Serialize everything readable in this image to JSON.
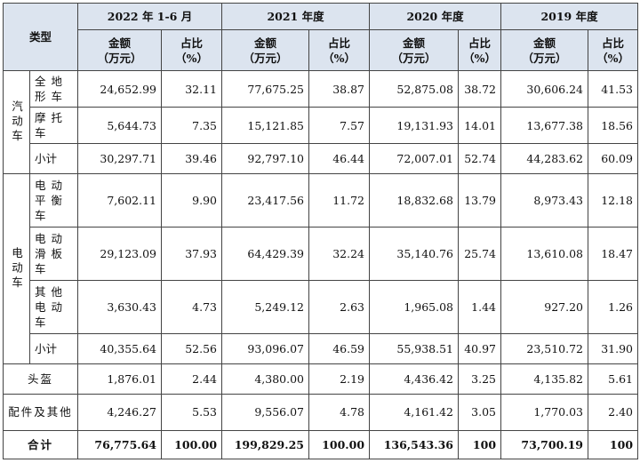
{
  "header": {
    "type_label": "类型",
    "periods": [
      "2022 年 1-6 月",
      "2021 年度",
      "2020 年度",
      "2019 年度"
    ],
    "amount_label": "金额\n（万元）",
    "ratio_label": "占比\n（%）"
  },
  "groups": {
    "motor": "汽动车",
    "electric": "电动车"
  },
  "rows": {
    "atv": {
      "label": "全地形车",
      "values": [
        "24,652.99",
        "32.11",
        "77,675.25",
        "38.87",
        "52,875.08",
        "38.72",
        "30,606.24",
        "41.53"
      ]
    },
    "moto": {
      "label": "摩托车",
      "values": [
        "5,644.73",
        "7.35",
        "15,121.85",
        "7.57",
        "19,131.93",
        "14.01",
        "13,677.38",
        "18.56"
      ]
    },
    "motor_sub": {
      "label": "小计",
      "values": [
        "30,297.71",
        "39.46",
        "92,797.10",
        "46.44",
        "72,007.01",
        "52.74",
        "44,283.62",
        "60.09"
      ]
    },
    "balance": {
      "label": "电动平衡车",
      "values": [
        "7,602.11",
        "9.90",
        "23,417.56",
        "11.72",
        "18,832.68",
        "13.79",
        "8,973.43",
        "12.18"
      ]
    },
    "scooter": {
      "label": "电动滑板车",
      "values": [
        "29,123.09",
        "37.93",
        "64,429.39",
        "32.24",
        "35,140.76",
        "25.74",
        "13,610.08",
        "18.47"
      ]
    },
    "other_e": {
      "label": "其他电动车",
      "values": [
        "3,630.43",
        "4.73",
        "5,249.12",
        "2.63",
        "1,965.08",
        "1.44",
        "927.20",
        "1.26"
      ]
    },
    "elec_sub": {
      "label": "小计",
      "values": [
        "40,355.64",
        "52.56",
        "93,096.07",
        "46.59",
        "55,938.51",
        "40.97",
        "23,510.72",
        "31.90"
      ]
    },
    "helmet": {
      "label": "头盔",
      "values": [
        "1,876.01",
        "2.44",
        "4,380.00",
        "2.19",
        "4,436.42",
        "3.25",
        "4,135.82",
        "5.61"
      ]
    },
    "parts": {
      "label": "配件及其他",
      "values": [
        "4,246.27",
        "5.53",
        "9,556.07",
        "4.78",
        "4,161.42",
        "3.05",
        "1,770.03",
        "2.40"
      ]
    },
    "total": {
      "label": "合计",
      "values": [
        "76,775.64",
        "100.00",
        "199,829.25",
        "100.00",
        "136,543.36",
        "100",
        "73,700.19",
        "100"
      ]
    }
  }
}
